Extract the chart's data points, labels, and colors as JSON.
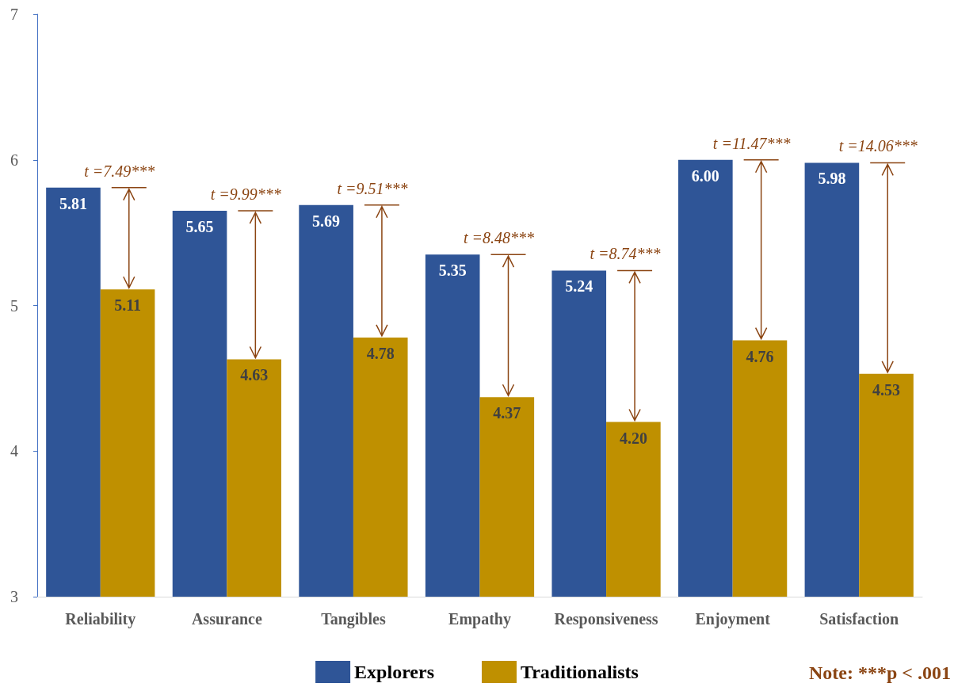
{
  "chart_data": {
    "type": "bar",
    "categories": [
      "Reliability",
      "Assurance",
      "Tangibles",
      "Empathy",
      "Responsiveness",
      "Enjoyment",
      "Satisfaction"
    ],
    "series": [
      {
        "name": "Explorers",
        "color": "#2f5597",
        "values": [
          5.81,
          5.65,
          5.69,
          5.35,
          5.24,
          6.0,
          5.98
        ],
        "value_labels": [
          "5.81",
          "5.65",
          "5.69",
          "5.35",
          "5.24",
          "6.00",
          "5.98"
        ]
      },
      {
        "name": "Traditionalists",
        "color": "#bf9000",
        "values": [
          5.11,
          4.63,
          4.78,
          4.37,
          4.2,
          4.76,
          4.53
        ],
        "value_labels": [
          "5.11",
          "4.63",
          "4.78",
          "4.37",
          "4.20",
          "4.76",
          "4.53"
        ]
      }
    ],
    "ylim": [
      3,
      7
    ],
    "yticks": [
      3,
      4,
      5,
      6,
      7
    ],
    "grid": false,
    "legend": "bottom",
    "annotations": [
      {
        "text": "t =7.49***",
        "x": "Reliability",
        "y": 5.81
      },
      {
        "text": "t =9.99***",
        "x": "Assurance",
        "y": 5.65
      },
      {
        "text": "t =9.51***",
        "x": "Tangibles",
        "y": 5.69
      },
      {
        "text": "t =8.48***",
        "x": "Empathy",
        "y": 5.35
      },
      {
        "text": "t =8.74***",
        "x": "Responsiveness",
        "y": 5.24
      },
      {
        "text": "t =11.47***",
        "x": "Enjoyment",
        "y": 6.0
      },
      {
        "text": "t =14.06***",
        "x": "Satisfaction",
        "y": 5.98
      },
      "Note: ***p < .001"
    ]
  }
}
